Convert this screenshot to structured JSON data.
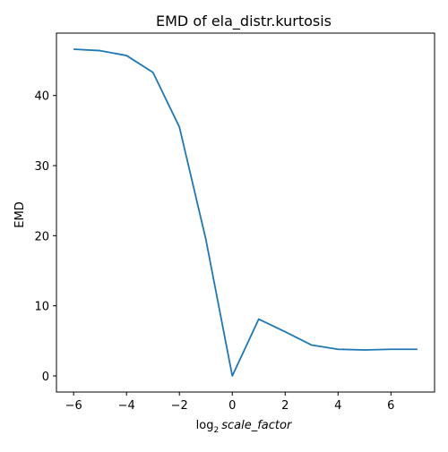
{
  "chart_data": {
    "type": "line",
    "title": "EMD of ela_distr.kurtosis",
    "xlabel_prefix": "log",
    "xlabel_subscript": "2",
    "xlabel_italic": "scale_factor",
    "ylabel": "EMD",
    "xlim": [
      -6.65,
      7.65
    ],
    "ylim": [
      -2.3,
      48.9
    ],
    "xticks": [
      -6,
      -4,
      -2,
      0,
      2,
      4,
      6
    ],
    "xtick_labels": [
      "−6",
      "−4",
      "−2",
      "0",
      "2",
      "4",
      "6"
    ],
    "yticks": [
      0,
      10,
      20,
      30,
      40
    ],
    "ytick_labels": [
      "0",
      "10",
      "20",
      "30",
      "40"
    ],
    "grid": false,
    "series": [
      {
        "color": "#1f77b4",
        "x": [
          -6,
          -5,
          -4,
          -3,
          -2,
          -1,
          0,
          1,
          2,
          3,
          4,
          5,
          6,
          7
        ],
        "y": [
          46.6,
          46.4,
          45.7,
          43.3,
          35.5,
          19.5,
          0.0,
          8.1,
          6.3,
          4.4,
          3.8,
          3.7,
          3.8,
          3.8
        ]
      }
    ]
  }
}
